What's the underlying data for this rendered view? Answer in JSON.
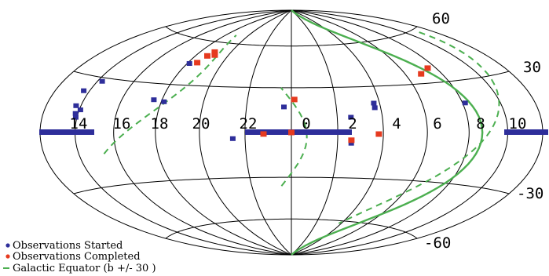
{
  "chart_data": {
    "type": "scatter",
    "projection": "hammer-aitoff",
    "title": "",
    "ra_tick_labels": [
      "14",
      "16",
      "18",
      "20",
      "22",
      "0",
      "2",
      "4",
      "6",
      "8",
      "10"
    ],
    "dec_tick_labels": [
      "60",
      "30",
      "-30",
      "-60"
    ],
    "grid": true,
    "legend": {
      "placement": "bottom-left",
      "started": "Observations Started",
      "completed": "Observations Completed",
      "galactic": "Galactic Equator (b +/- 30 )"
    },
    "colors": {
      "started": "#2e2e9a",
      "completed": "#e63a1f",
      "galactic": "#4caf50",
      "grid": "#000000"
    },
    "series": [
      {
        "name": "Observations Started",
        "points": [
          {
            "lon": -155,
            "lat": 22
          },
          {
            "lon": -154,
            "lat": 14
          },
          {
            "lon": -152,
            "lat": 10
          },
          {
            "lon": -151,
            "lat": 8
          },
          {
            "lon": -149,
            "lat": 12
          },
          {
            "lon": -146,
            "lat": 28
          },
          {
            "lon": -96,
            "lat": 20
          },
          {
            "lon": -88,
            "lat": 19
          },
          {
            "lon": -88,
            "lat": 44
          },
          {
            "lon": -38,
            "lat": -4
          },
          {
            "lon": -5,
            "lat": 17
          },
          {
            "lon": 39,
            "lat": 10
          },
          {
            "lon": 39,
            "lat": -7
          },
          {
            "lon": 56,
            "lat": 16
          },
          {
            "lon": 56,
            "lat": 19
          },
          {
            "lon": 122,
            "lat": 17
          }
        ]
      },
      {
        "name": "Observations Completed",
        "points": [
          {
            "lon": -79,
            "lat": 50
          },
          {
            "lon": -76,
            "lat": 53
          },
          {
            "lon": -73,
            "lat": 51
          },
          {
            "lon": -82,
            "lat": 45
          },
          {
            "lon": -18,
            "lat": -1
          },
          {
            "lon": 0,
            "lat": 0
          },
          {
            "lon": 2,
            "lat": 22
          },
          {
            "lon": 39,
            "lat": -5
          },
          {
            "lon": 57,
            "lat": -1
          },
          {
            "lon": 103,
            "lat": 36
          },
          {
            "lon": 113,
            "lat": 39
          }
        ]
      }
    ]
  }
}
